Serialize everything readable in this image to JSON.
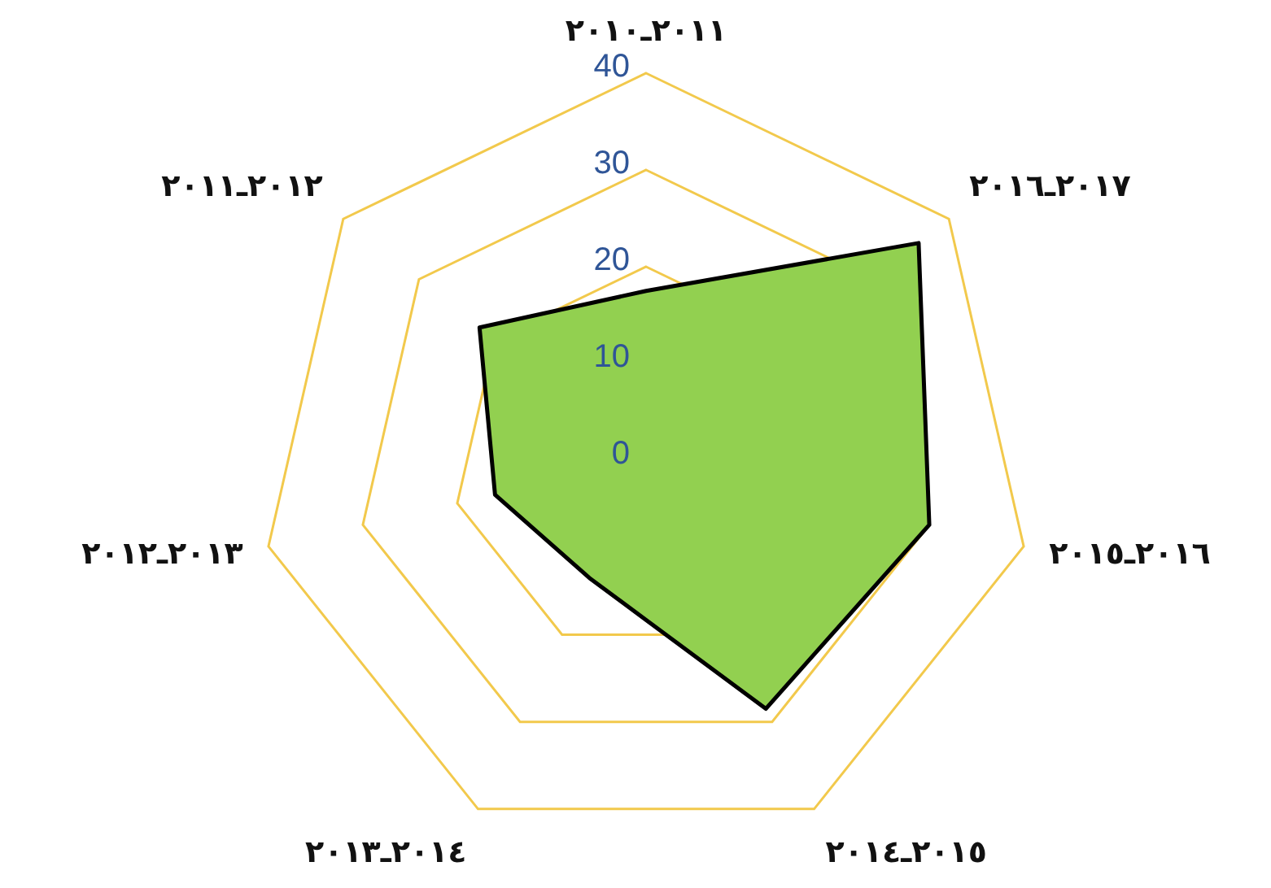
{
  "chart_data": {
    "type": "radar",
    "categories": [
      "٢٠١٠ـ٢٠١١",
      "٢٠١٦ـ٢٠١٧",
      "٢٠١٥ـ٢٠١٦",
      "٢٠١٤ـ٢٠١٥",
      "٢٠١٣ـ٢٠١٤",
      "٢٠١٢ـ٢٠١٣",
      "٢٠١١ـ٢٠١٢"
    ],
    "series": [
      {
        "color": "#92d050",
        "values": [
          17.5,
          36,
          30,
          28.5,
          13.5,
          16,
          22
        ]
      }
    ],
    "ylim": [
      0,
      40
    ],
    "yticks": [
      0,
      10,
      20,
      30,
      40
    ],
    "grid": true
  }
}
